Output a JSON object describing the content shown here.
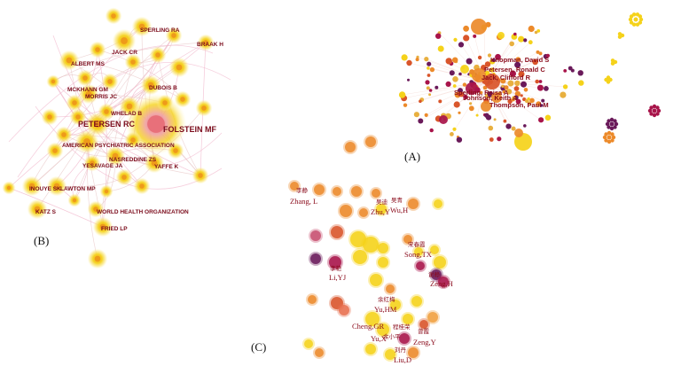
{
  "panels": {
    "a": {
      "label": "(A)",
      "author_labels": [
        "Knopman, David S",
        "Petersen, Ronald C",
        "Jack, Clifford R",
        "Sperling, Reisa A",
        "Johnson, Keith A",
        "Thompson, Paul M"
      ]
    },
    "b": {
      "label": "(B)",
      "author_labels": [
        "SPERLING RA",
        "BRAAK H",
        "JACK CR",
        "ALBERT MS",
        "MCKHANN GM",
        "MORRIS JC",
        "DUBOIS B",
        "WHELAD B",
        "PETERSEN RC",
        "FOLSTEIN MF",
        "AMERICAN PSYCHIATRIC ASSOCIATION",
        "NASREDDINE ZS",
        "YESAVAGE JA",
        "YAFFE K",
        "INOUYE SK",
        "LAWTON MP",
        "KATZ S",
        "WORLD HEALTH ORGANIZATION",
        "FRIED LP"
      ]
    },
    "c": {
      "label": "(C)",
      "author_labels": [
        "李静",
        "Zhang, L",
        "吴青",
        "吴迪",
        "Zhu,Y",
        "Wu,H",
        "宋春霞",
        "Song,TX",
        "李艳",
        "Li,YJ",
        "谢静",
        "Zeng,H",
        "余红梅",
        "Yu,HM",
        "Cheng,GR",
        "程桂荣",
        "余小平",
        "Yu,X",
        "曾霞",
        "Zeng,Y",
        "刘丹",
        "Liu,D"
      ]
    }
  },
  "colors": {
    "yellow": "#f5d21a",
    "orange": "#ec8a2a",
    "dark_orange": "#d9552a",
    "magenta": "#a8144a",
    "purple": "#6a1a5a",
    "pink": "#f0b0c8",
    "label": "#7a0a1a"
  }
}
